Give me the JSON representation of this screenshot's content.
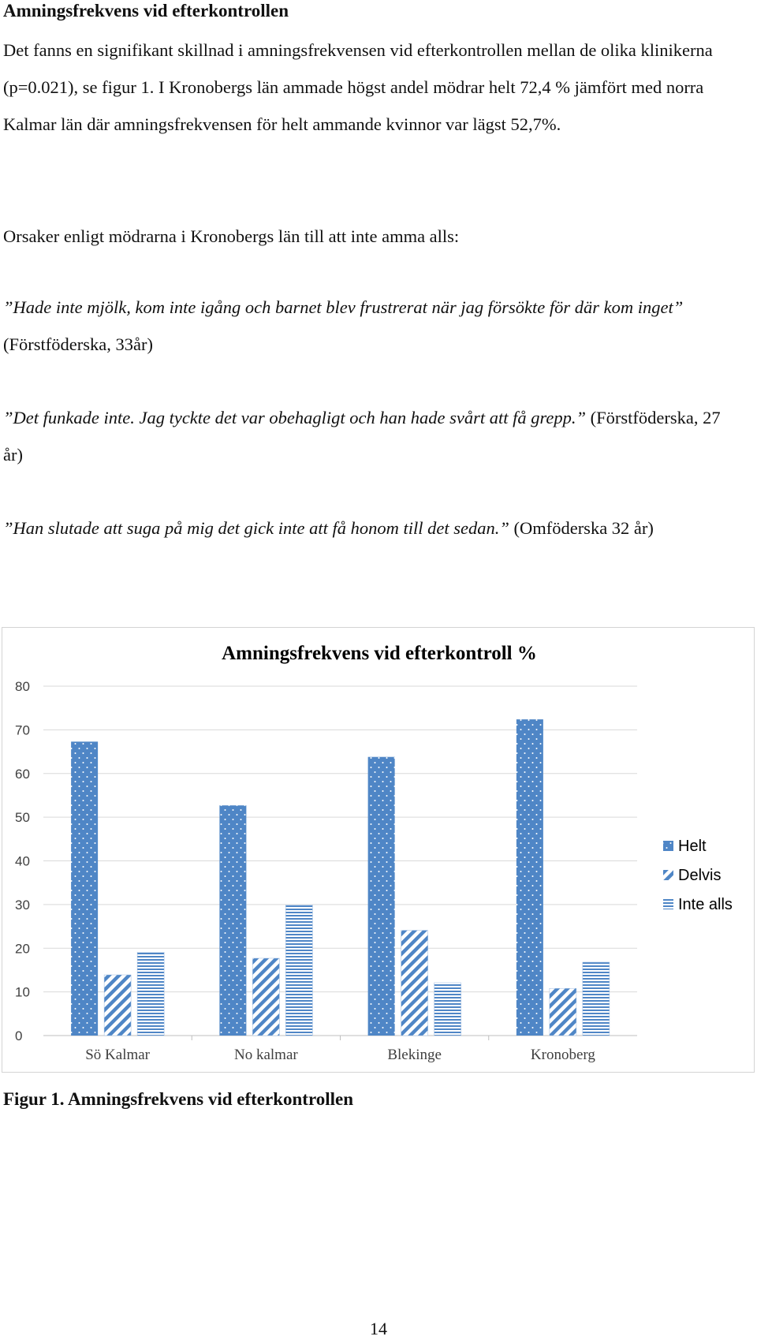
{
  "heading": "Amningsfrekvens vid efterkontrollen",
  "paragraph1": "Det fanns en signifikant skillnad i amningsfrekvensen vid efterkontrollen mellan de olika klinikerna (p=0.021), se figur 1. I Kronobergs län ammade högst andel mödrar helt 72,4 % jämfört med norra Kalmar län där amningsfrekvensen för helt ammande kvinnor var lägst 52,7%.",
  "paragraph2": "Orsaker enligt mödrarna i Kronobergs län till att inte amma alls:",
  "quotes": [
    {
      "text": "”Hade inte mjölk, kom inte igång och barnet blev frustrerat när jag försökte för där kom inget”",
      "source": " (Förstföderska, 33år)"
    },
    {
      "text": "”Det funkade inte. Jag tyckte det var obehagligt och han hade svårt att få grepp.”",
      "source": " (Förstföderska, 27 år)"
    },
    {
      "text": "”Han slutade att suga på mig det gick inte att få honom till det sedan.”",
      "source": " (Omföderska 32 år)"
    }
  ],
  "caption": "Figur 1. Amningsfrekvens vid efterkontrollen",
  "page_number": "14",
  "colors": {
    "series": "#4f86c6",
    "grid": "#d9d9d9",
    "axis": "#bfbfbf"
  },
  "chart_data": {
    "type": "bar",
    "title": "Amningsfrekvens vid efterkontroll %",
    "categories": [
      "Sö Kalmar",
      "No kalmar",
      "Blekinge",
      "Kronoberg"
    ],
    "series": [
      {
        "name": "Helt",
        "pattern": "dots",
        "values": [
          67.3,
          52.7,
          63.8,
          72.4
        ]
      },
      {
        "name": "Delvis",
        "pattern": "diagonal",
        "values": [
          13.9,
          17.7,
          24.1,
          10.8
        ]
      },
      {
        "name": "Inte alls",
        "pattern": "horizontal",
        "values": [
          19.1,
          29.9,
          12.1,
          16.8
        ]
      }
    ],
    "ylim": [
      0,
      80
    ],
    "yticks": [
      0,
      10,
      20,
      30,
      40,
      50,
      60,
      70,
      80
    ],
    "grid": true,
    "legend": "right"
  }
}
